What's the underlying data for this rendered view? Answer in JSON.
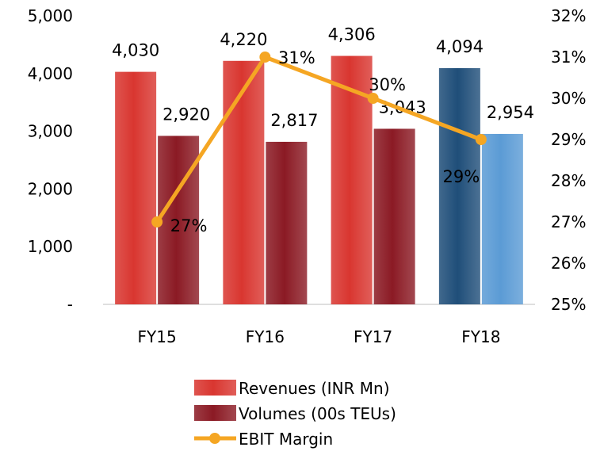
{
  "chart_data": {
    "type": "bar",
    "categories": [
      "FY15",
      "FY16",
      "FY17",
      "FY18"
    ],
    "series": [
      {
        "name": "Revenues (INR Mn)",
        "kind": "bar",
        "axis": "left",
        "values": [
          4030,
          4220,
          4306,
          4094
        ],
        "labels": [
          "4,030",
          "4,220",
          "4,306",
          "4,094"
        ]
      },
      {
        "name": "Volumes (00s TEUs)",
        "kind": "bar",
        "axis": "left",
        "values": [
          2920,
          2817,
          3043,
          2954
        ],
        "labels": [
          "2,920",
          "2,817",
          "3,043",
          "2,954"
        ]
      },
      {
        "name": "EBIT Margin",
        "kind": "line",
        "axis": "right",
        "values": [
          27,
          31,
          30,
          29
        ],
        "labels": [
          "27%",
          "31%",
          "30%",
          "29%"
        ]
      }
    ],
    "highlight_category": "FY18",
    "y_left": {
      "min": 0,
      "max": 5000,
      "ticks": [
        0,
        1000,
        2000,
        3000,
        4000,
        5000
      ],
      "tick_labels": [
        "-",
        "1,000",
        "2,000",
        "3,000",
        "4,000",
        "5,000"
      ]
    },
    "y_right": {
      "min": 25,
      "max": 32,
      "ticks": [
        25,
        26,
        27,
        28,
        29,
        30,
        31,
        32
      ],
      "tick_labels": [
        "25%",
        "26%",
        "27%",
        "28%",
        "29%",
        "30%",
        "31%",
        "32%"
      ]
    },
    "grid": false,
    "legend_position": "bottom",
    "colors": {
      "revenue": "#d93630",
      "revenue_highlight": "#1f4e79",
      "volume": "#8b1a24",
      "volume_highlight": "#5b9bd5",
      "line": "#f5a623",
      "axis": "#bfbfbf"
    }
  }
}
